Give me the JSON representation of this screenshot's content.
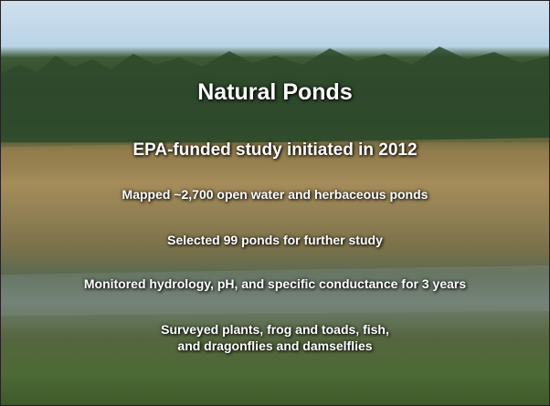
{
  "slide": {
    "title": "Natural Ponds",
    "subtitle": "EPA-funded study initiated in 2012",
    "bullets": [
      "Mapped ~2,700 open water and herbaceous ponds",
      "Selected 99 ponds for further study",
      "Monitored hydrology, pH, and specific conductance for 3 years",
      "Surveyed plants, frog and toads, fish,",
      "and dragonflies and damselflies"
    ]
  }
}
